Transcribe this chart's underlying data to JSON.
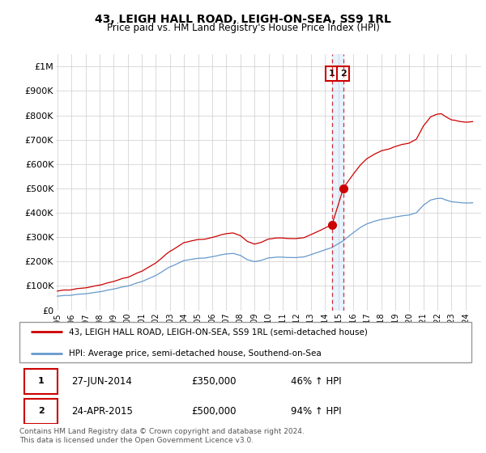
{
  "title": "43, LEIGH HALL ROAD, LEIGH-ON-SEA, SS9 1RL",
  "subtitle": "Price paid vs. HM Land Registry's House Price Index (HPI)",
  "legend_line1": "43, LEIGH HALL ROAD, LEIGH-ON-SEA, SS9 1RL (semi-detached house)",
  "legend_line2": "HPI: Average price, semi-detached house, Southend-on-Sea",
  "annotation1_date": "27-JUN-2014",
  "annotation1_price": "£350,000",
  "annotation1_hpi": "46% ↑ HPI",
  "annotation2_date": "24-APR-2015",
  "annotation2_price": "£500,000",
  "annotation2_hpi": "94% ↑ HPI",
  "footer": "Contains HM Land Registry data © Crown copyright and database right 2024.\nThis data is licensed under the Open Government Licence v3.0.",
  "red_color": "#cc0000",
  "blue_color": "#6699cc",
  "shade_color": "#ddeeff",
  "ylim": [
    0,
    1050000
  ],
  "yticks": [
    0,
    100000,
    200000,
    300000,
    400000,
    500000,
    600000,
    700000,
    800000,
    900000,
    1000000
  ],
  "ytick_labels": [
    "£0",
    "£100K",
    "£200K",
    "£300K",
    "£400K",
    "£500K",
    "£600K",
    "£700K",
    "£800K",
    "£900K",
    "£1M"
  ],
  "sale1_x": 2014.496,
  "sale1_y": 350000,
  "sale2_x": 2015.3,
  "sale2_y": 500000,
  "vline_x1": 2014.496,
  "vline_x2": 2015.3,
  "xlim_left": 1994.9,
  "xlim_right": 2025.1
}
